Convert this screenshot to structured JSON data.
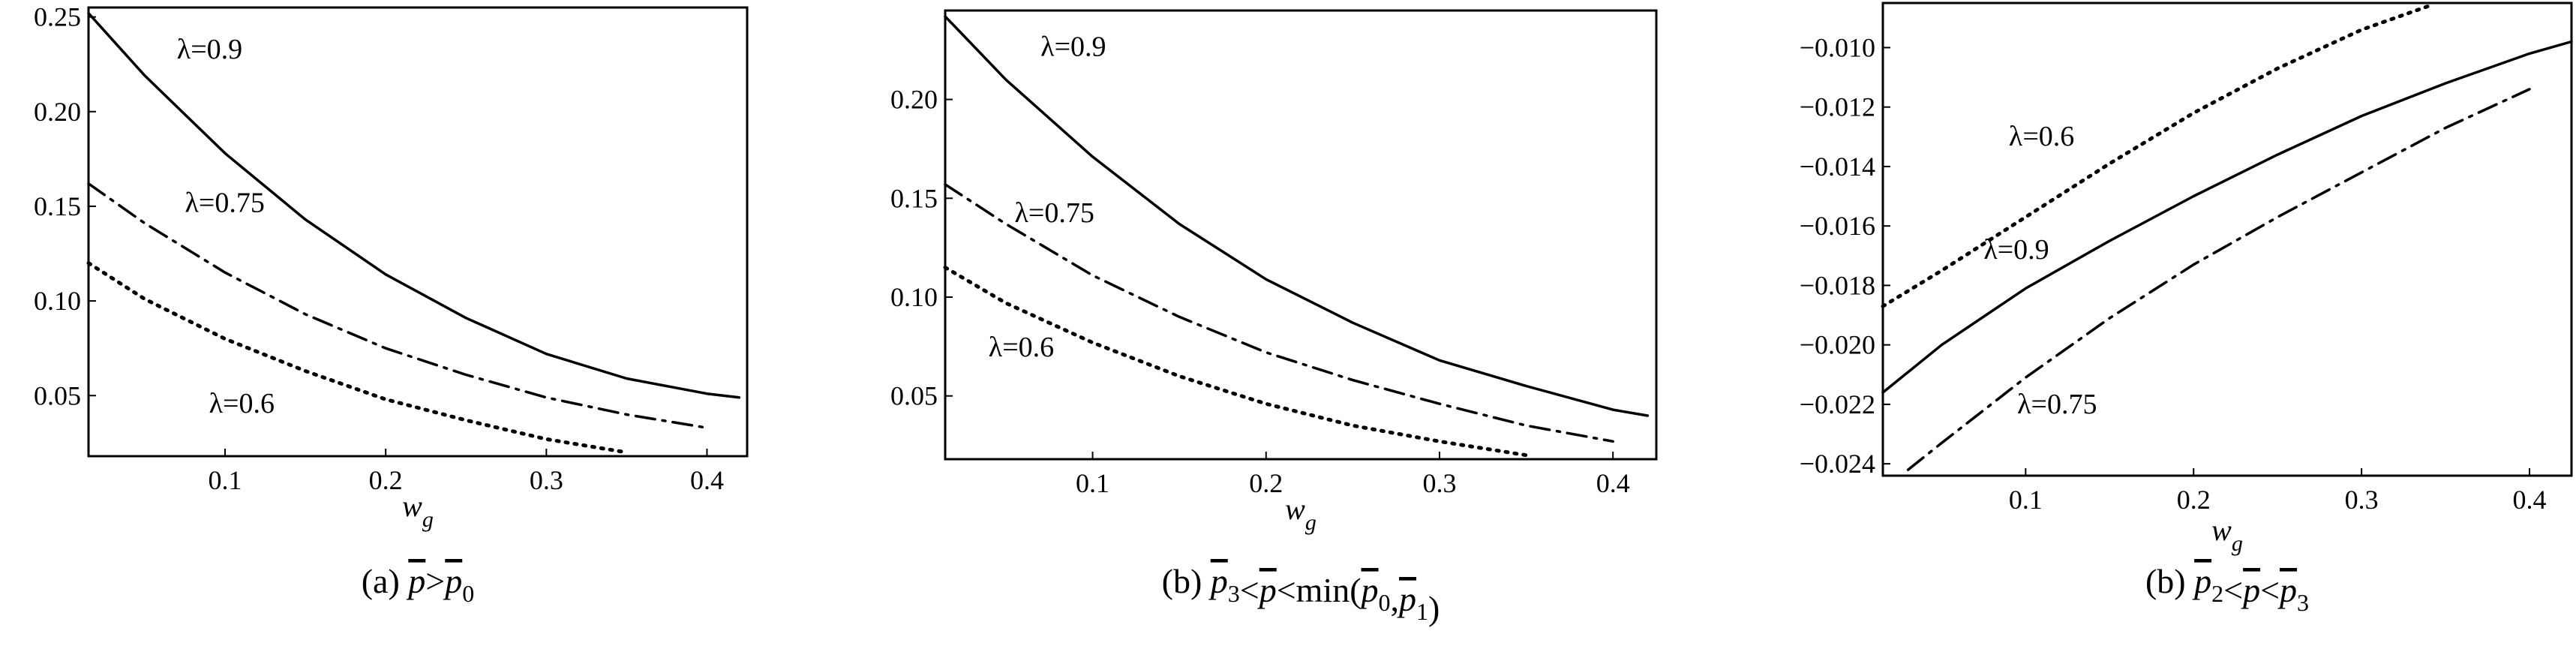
{
  "chart_data": [
    {
      "type": "line",
      "caption": {
        "prefix": "(a) ",
        "parts": [
          {
            "t": "p",
            "bar": true
          },
          {
            "t": ">"
          },
          {
            "t": "p",
            "bar": true,
            "sub": "0"
          }
        ]
      },
      "xlabel": {
        "main": "w",
        "sub": "g"
      },
      "xlim": [
        0.015,
        0.425
      ],
      "ylim": [
        0.018,
        0.255
      ],
      "xticks": [
        {
          "v": 0.1,
          "label": "0.1"
        },
        {
          "v": 0.2,
          "label": "0.2"
        },
        {
          "v": 0.3,
          "label": "0.3"
        },
        {
          "v": 0.4,
          "label": "0.4"
        }
      ],
      "yticks": [
        {
          "v": 0.05,
          "label": "0.05"
        },
        {
          "v": 0.1,
          "label": "0.10"
        },
        {
          "v": 0.15,
          "label": "0.15"
        },
        {
          "v": 0.2,
          "label": "0.20"
        },
        {
          "v": 0.25,
          "label": "0.25"
        }
      ],
      "series": [
        {
          "name": "λ=0.9",
          "style": "solid",
          "x": [
            0.015,
            0.05,
            0.1,
            0.15,
            0.2,
            0.25,
            0.3,
            0.35,
            0.4,
            0.42
          ],
          "y": [
            0.252,
            0.219,
            0.178,
            0.143,
            0.114,
            0.091,
            0.072,
            0.059,
            0.051,
            0.049
          ],
          "label_at": [
            0.07,
            0.228
          ]
        },
        {
          "name": "λ=0.75",
          "style": "dashdot",
          "x": [
            0.015,
            0.05,
            0.1,
            0.15,
            0.2,
            0.25,
            0.3,
            0.35,
            0.4
          ],
          "y": [
            0.162,
            0.141,
            0.115,
            0.093,
            0.075,
            0.061,
            0.049,
            0.04,
            0.033
          ],
          "label_at": [
            0.075,
            0.147
          ]
        },
        {
          "name": "λ=0.6",
          "style": "dotted",
          "x": [
            0.015,
            0.05,
            0.1,
            0.15,
            0.2,
            0.25,
            0.3,
            0.35
          ],
          "y": [
            0.12,
            0.101,
            0.08,
            0.063,
            0.048,
            0.037,
            0.027,
            0.02
          ],
          "label_at": [
            0.09,
            0.041
          ]
        }
      ]
    },
    {
      "type": "line",
      "caption": {
        "prefix": "(b) ",
        "parts": [
          {
            "t": "p",
            "bar": true,
            "sub": "3"
          },
          {
            "t": "<"
          },
          {
            "t": "p",
            "bar": true
          },
          {
            "t": "<min("
          },
          {
            "t": "p",
            "bar": true,
            "sub": "0"
          },
          {
            "t": ","
          },
          {
            "t": "p",
            "bar": true,
            "sub": "1"
          },
          {
            "t": ")"
          }
        ]
      },
      "xlabel": {
        "main": "w",
        "sub": "g"
      },
      "xlim": [
        0.015,
        0.425
      ],
      "ylim": [
        0.018,
        0.245
      ],
      "xticks": [
        {
          "v": 0.1,
          "label": "0.1"
        },
        {
          "v": 0.2,
          "label": "0.2"
        },
        {
          "v": 0.3,
          "label": "0.3"
        },
        {
          "v": 0.4,
          "label": "0.4"
        }
      ],
      "yticks": [
        {
          "v": 0.05,
          "label": "0.05"
        },
        {
          "v": 0.1,
          "label": "0.10"
        },
        {
          "v": 0.15,
          "label": "0.15"
        },
        {
          "v": 0.2,
          "label": "0.20"
        }
      ],
      "series": [
        {
          "name": "λ=0.9",
          "style": "solid",
          "x": [
            0.015,
            0.05,
            0.1,
            0.15,
            0.2,
            0.25,
            0.3,
            0.35,
            0.4,
            0.42
          ],
          "y": [
            0.242,
            0.21,
            0.171,
            0.137,
            0.109,
            0.087,
            0.068,
            0.055,
            0.043,
            0.04
          ],
          "label_at": [
            0.07,
            0.222
          ]
        },
        {
          "name": "λ=0.75",
          "style": "dashdot",
          "x": [
            0.015,
            0.05,
            0.1,
            0.15,
            0.2,
            0.25,
            0.3,
            0.35,
            0.4
          ],
          "y": [
            0.157,
            0.137,
            0.111,
            0.09,
            0.072,
            0.058,
            0.046,
            0.035,
            0.027
          ],
          "label_at": [
            0.055,
            0.138
          ]
        },
        {
          "name": "λ=0.6",
          "style": "dotted",
          "x": [
            0.015,
            0.05,
            0.1,
            0.15,
            0.2,
            0.25,
            0.3,
            0.35
          ],
          "y": [
            0.115,
            0.097,
            0.077,
            0.06,
            0.046,
            0.035,
            0.027,
            0.02
          ],
          "label_at": [
            0.04,
            0.07
          ]
        }
      ]
    },
    {
      "type": "line",
      "caption": {
        "prefix": "(b) ",
        "parts": [
          {
            "t": "p",
            "bar": true,
            "sub": "2"
          },
          {
            "t": "<"
          },
          {
            "t": "p",
            "bar": true
          },
          {
            "t": "<"
          },
          {
            "t": "p",
            "bar": true,
            "sub": "3"
          }
        ]
      },
      "xlabel": {
        "main": "w",
        "sub": "g"
      },
      "xlim": [
        0.015,
        0.425
      ],
      "ylim": [
        -0.0244,
        -0.0085
      ],
      "xticks": [
        {
          "v": 0.1,
          "label": "0.1"
        },
        {
          "v": 0.2,
          "label": "0.2"
        },
        {
          "v": 0.3,
          "label": "0.3"
        },
        {
          "v": 0.4,
          "label": "0.4"
        }
      ],
      "yticks": [
        {
          "v": -0.024,
          "label": "−0.024"
        },
        {
          "v": -0.022,
          "label": "−0.022"
        },
        {
          "v": -0.02,
          "label": "−0.020"
        },
        {
          "v": -0.018,
          "label": "−0.018"
        },
        {
          "v": -0.016,
          "label": "−0.016"
        },
        {
          "v": -0.014,
          "label": "−0.014"
        },
        {
          "v": -0.012,
          "label": "−0.012"
        },
        {
          "v": -0.01,
          "label": "−0.010"
        }
      ],
      "series": [
        {
          "name": "λ=0.6",
          "style": "dotted",
          "x": [
            0.015,
            0.05,
            0.1,
            0.15,
            0.2,
            0.25,
            0.3,
            0.34
          ],
          "y": [
            -0.0187,
            -0.0175,
            -0.0157,
            -0.0139,
            -0.0122,
            -0.0107,
            -0.0094,
            -0.0086
          ],
          "label_at": [
            0.09,
            -0.0133
          ]
        },
        {
          "name": "λ=0.9",
          "style": "solid",
          "x": [
            0.015,
            0.05,
            0.1,
            0.15,
            0.2,
            0.25,
            0.3,
            0.35,
            0.4,
            0.425
          ],
          "y": [
            -0.0216,
            -0.02,
            -0.0181,
            -0.0165,
            -0.015,
            -0.0136,
            -0.0123,
            -0.0112,
            -0.0102,
            -0.0098
          ],
          "label_at": [
            0.075,
            -0.0171
          ]
        },
        {
          "name": "λ=0.75",
          "style": "dashdot",
          "x": [
            0.03,
            0.05,
            0.1,
            0.15,
            0.2,
            0.25,
            0.3,
            0.35,
            0.4
          ],
          "y": [
            -0.0242,
            -0.0233,
            -0.0211,
            -0.0191,
            -0.0173,
            -0.0157,
            -0.0142,
            -0.0127,
            -0.0114
          ],
          "label_at": [
            0.095,
            -0.0223
          ]
        }
      ]
    }
  ]
}
